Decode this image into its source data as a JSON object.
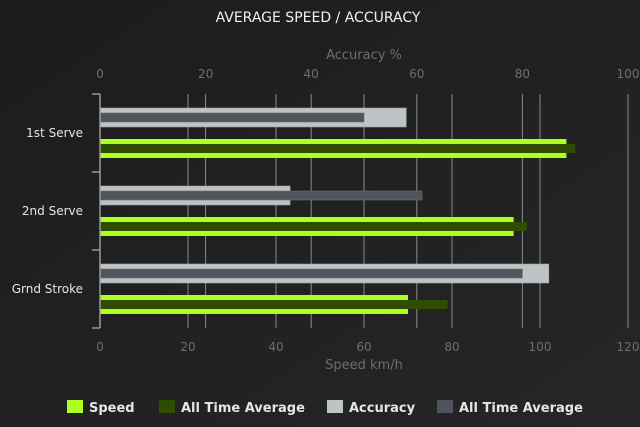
{
  "chart_data": {
    "type": "bar",
    "orientation": "horizontal",
    "title": "AVERAGE SPEED / ACCURACY",
    "categories": [
      "1st Serve",
      "2nd Serve",
      "Grnd Stroke"
    ],
    "x_axis_bottom": {
      "label": "Speed km/h",
      "range": [
        0,
        120
      ],
      "ticks": [
        0,
        20,
        40,
        60,
        80,
        100,
        120
      ]
    },
    "x_axis_top": {
      "label": "Accuracy %",
      "range": [
        0,
        100
      ],
      "ticks": [
        0,
        20,
        40,
        60,
        80,
        100
      ]
    },
    "grid": true,
    "legend_position": "bottom",
    "series": [
      {
        "name": "Speed",
        "axis": "speed",
        "color": "#adff1f",
        "values": [
          106,
          94,
          70
        ]
      },
      {
        "name": "All Time Average",
        "axis": "speed",
        "color": "#2f4d00",
        "values": [
          108,
          97,
          79
        ]
      },
      {
        "name": "Accuracy",
        "axis": "accuracy",
        "color": "#bec3c6",
        "values": [
          58,
          36,
          85
        ]
      },
      {
        "name": "All Time Average",
        "axis": "accuracy",
        "color": "#50555c",
        "values": [
          50,
          61,
          80
        ]
      }
    ]
  }
}
